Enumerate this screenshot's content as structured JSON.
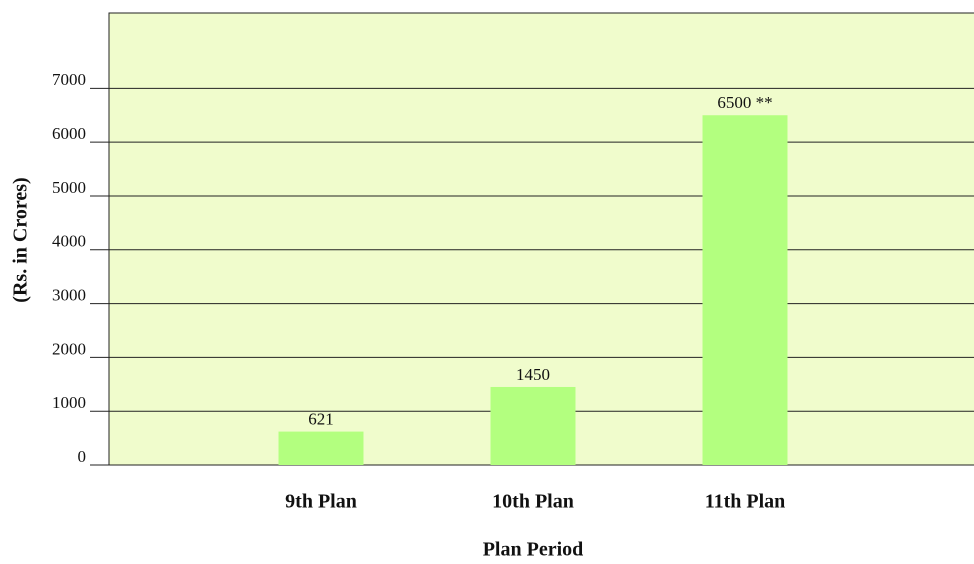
{
  "chart_data": {
    "type": "bar",
    "categories": [
      "9th Plan",
      "10th Plan",
      "11th Plan"
    ],
    "values": [
      621,
      1450,
      6500
    ],
    "value_labels": [
      "621",
      "1450",
      "6500 **"
    ],
    "color": "#b3ff7f",
    "ylabel": "(Rs. in Crores)",
    "xlabel": "Plan Period",
    "ylim": [
      0,
      8400
    ],
    "yticks": [
      0,
      1000,
      2000,
      3000,
      4000,
      5000,
      6000,
      7000
    ],
    "grid": true
  }
}
